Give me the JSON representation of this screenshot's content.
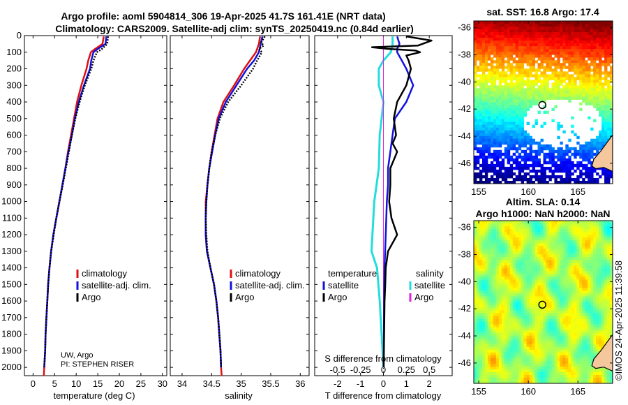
{
  "figure": {
    "title_line1": "Argo profile: aoml 5904814_306 19-Apr-2025 41.7S 161.41E (NRT data)",
    "title_line2": "Climatology: CARS2009. Satellite-adj clim: synTS_20250419.nc (0.84d earlier)",
    "credit": "UW, Argo",
    "pi": "PI: STEPHEN RISER",
    "stamp": "©IMOS 24-Apr-2025 11:39:58"
  },
  "colors": {
    "climatology": "#dd1111",
    "satellite": "#1111dd",
    "argo": "#000000",
    "salinity_sat": "#22dddd",
    "salinity_argo": "#dd22dd"
  },
  "chart_data": [
    {
      "type": "line",
      "name": "temperature-profile",
      "xlabel": "temperature (deg C)",
      "ylabel": "",
      "xlim": [
        -2,
        31
      ],
      "ylim": [
        2050,
        0
      ],
      "xticks": [
        "0",
        "5",
        "10",
        "15",
        "20",
        "25",
        "30"
      ],
      "yticks": [
        "0",
        "100",
        "200",
        "300",
        "400",
        "500",
        "600",
        "700",
        "800",
        "900",
        "1000",
        "1100",
        "1200",
        "1300",
        "1400",
        "1500",
        "1600",
        "1700",
        "1800",
        "1900",
        "2000"
      ],
      "legend": [
        "climatology",
        "satellite-adj. clim.",
        "Argo"
      ],
      "series": [
        {
          "name": "climatology",
          "depth": [
            5,
            50,
            80,
            100,
            150,
            200,
            300,
            400,
            500,
            600,
            700,
            800,
            900,
            1000,
            1100,
            1200,
            1300,
            1400,
            1500,
            1600,
            1700,
            1800,
            1900,
            2000,
            2050
          ],
          "values": [
            16.4,
            16.1,
            14.4,
            13.4,
            12.8,
            12.4,
            11.2,
            10.2,
            9.5,
            8.8,
            8.1,
            7.5,
            6.8,
            6.1,
            5.4,
            4.7,
            4.2,
            3.8,
            3.5,
            3.3,
            3.1,
            2.9,
            2.8,
            2.6,
            2.5
          ]
        },
        {
          "name": "satellite-adj. clim.",
          "depth": [
            5,
            50,
            80,
            100,
            150,
            200,
            300,
            400,
            500,
            600,
            700,
            800,
            900,
            1000,
            1100,
            1200,
            1300,
            1400,
            1500,
            1600,
            1700,
            1800,
            1900,
            2000
          ],
          "values": [
            17.0,
            16.8,
            15.0,
            14.0,
            13.5,
            13.2,
            11.8,
            10.6,
            9.7,
            9.0,
            8.2,
            7.5,
            6.8,
            6.1,
            5.4,
            4.7,
            4.2,
            3.8,
            3.5,
            3.3,
            3.1,
            2.9,
            2.8,
            2.6
          ]
        },
        {
          "name": "Argo",
          "depth": [
            5,
            50,
            80,
            100,
            150,
            200,
            300,
            400,
            500,
            600,
            700,
            800,
            900,
            1000,
            1100,
            1200,
            1300,
            1400,
            1500,
            1600,
            1700,
            1800,
            1900,
            2000
          ],
          "values": [
            17.4,
            17.2,
            16.0,
            14.8,
            14.0,
            13.5,
            12.0,
            10.8,
            9.8,
            9.0,
            8.3,
            7.6,
            6.9,
            6.1,
            5.4,
            4.8,
            4.2,
            3.8,
            3.5,
            3.3,
            3.1,
            2.9,
            2.8,
            2.6
          ]
        }
      ]
    },
    {
      "type": "line",
      "name": "salinity-profile",
      "xlabel": "salinity",
      "xlim": [
        33.8,
        36.15
      ],
      "ylim": [
        2050,
        0
      ],
      "xticks": [
        "34",
        "34.5",
        "35",
        "35.5",
        "36"
      ],
      "legend": [
        "climatology",
        "satellite-adj. clim.",
        "Argo"
      ],
      "series": [
        {
          "name": "climatology",
          "depth": [
            5,
            50,
            100,
            150,
            200,
            300,
            400,
            500,
            600,
            700,
            800,
            900,
            1000,
            1100,
            1200,
            1300,
            1400,
            1500,
            1600,
            1700,
            1800,
            1900,
            2000,
            2050
          ],
          "values": [
            35.32,
            35.3,
            35.25,
            35.15,
            35.05,
            34.88,
            34.7,
            34.6,
            34.55,
            34.5,
            34.46,
            34.43,
            34.4,
            34.4,
            34.4,
            34.42,
            34.48,
            34.54,
            34.58,
            34.61,
            34.63,
            34.65,
            34.66,
            34.67
          ]
        },
        {
          "name": "satellite-adj. clim.",
          "depth": [
            5,
            50,
            100,
            150,
            200,
            300,
            400,
            500,
            600,
            700,
            800,
            900,
            1000,
            1100,
            1200,
            1300,
            1400,
            1500,
            1600,
            1700,
            1800,
            1900,
            2000
          ],
          "values": [
            35.36,
            35.33,
            35.3,
            35.22,
            35.1,
            34.92,
            34.74,
            34.62,
            34.56,
            34.51,
            34.46,
            34.43,
            34.41,
            34.4,
            34.4,
            34.42,
            34.48,
            34.54,
            34.58,
            34.61,
            34.63,
            34.65,
            34.66
          ]
        },
        {
          "name": "Argo",
          "depth": [
            5,
            40,
            60,
            80,
            100,
            150,
            200,
            300,
            400,
            500,
            600,
            700,
            800,
            900,
            1000,
            1100,
            1200,
            1300,
            1400,
            1500,
            1600,
            1700,
            1800,
            1900,
            2000
          ],
          "values": [
            35.4,
            35.34,
            35.38,
            35.3,
            35.35,
            35.27,
            35.2,
            35.0,
            34.78,
            34.64,
            34.56,
            34.5,
            34.46,
            34.43,
            34.41,
            34.4,
            34.41,
            34.43,
            34.48,
            34.54,
            34.58,
            34.61,
            34.63,
            34.65,
            34.66
          ]
        }
      ]
    },
    {
      "type": "line",
      "name": "difference-profile",
      "xlabel": "T difference from climatology",
      "xlabel2": "S difference from climatology",
      "xlim": [
        -3.0,
        3.0
      ],
      "ylim": [
        2050,
        0
      ],
      "xticks": [
        "-2",
        "-1",
        "0",
        "1",
        "2"
      ],
      "xticks2": [
        "-0.5",
        "-0.25",
        "0",
        "0.25",
        "0.5"
      ],
      "legend_temperature_title": "temperature",
      "legend_salinity_title": "salinity",
      "legend": [
        "satellite",
        "Argo",
        "satellite",
        "Argo"
      ],
      "series": [
        {
          "name": "T satellite",
          "depth": [
            5,
            50,
            80,
            100,
            150,
            200,
            300,
            400,
            500,
            600,
            700,
            800,
            900,
            1000,
            1200,
            1400,
            1600,
            1800,
            2000
          ],
          "values": [
            0.6,
            0.7,
            0.6,
            0.6,
            0.8,
            1.0,
            1.3,
            1.0,
            0.5,
            0.4,
            0.3,
            0.2,
            0.2,
            0.15,
            0.1,
            0.05,
            0.03,
            0.02,
            0.01
          ]
        },
        {
          "name": "T Argo",
          "depth": [
            5,
            30,
            60,
            70,
            80,
            90,
            100,
            120,
            150,
            200,
            300,
            400,
            500,
            600,
            650,
            700,
            800,
            900,
            1000,
            1100,
            1200,
            1300,
            1400,
            1500,
            1600,
            1800,
            2000
          ],
          "values": [
            1.0,
            2.1,
            1.5,
            -0.5,
            0.2,
            1.4,
            1.6,
            1.0,
            1.1,
            1.2,
            1.0,
            0.6,
            0.45,
            0.55,
            0.4,
            0.6,
            0.3,
            0.3,
            0.25,
            0.35,
            0.6,
            0.2,
            0.1,
            0.08,
            0.05,
            0.03,
            0.01
          ]
        },
        {
          "name": "S satellite",
          "depth": [
            5,
            50,
            100,
            150,
            200,
            300,
            400,
            500,
            600,
            800,
            1000,
            1200,
            1300,
            1400,
            1600,
            1800,
            2000
          ],
          "values": [
            0.1,
            0.1,
            0.08,
            0.0,
            -0.05,
            -0.05,
            0.0,
            -0.02,
            -0.04,
            -0.05,
            -0.1,
            -0.12,
            -0.13,
            -0.07,
            -0.04,
            -0.02,
            0.0
          ]
        },
        {
          "name": "S Argo",
          "depth": [
            5,
            2000
          ],
          "values": [
            0.0,
            0.0
          ]
        }
      ]
    },
    {
      "type": "heatmap",
      "name": "sst-map",
      "title": "sat. SST: 16.8 Argo: 17.4",
      "xlim": [
        154.5,
        168.5
      ],
      "ylim": [
        -47.5,
        -35.5
      ],
      "xticks": [
        "155",
        "160",
        "165"
      ],
      "yticks": [
        "-36",
        "-38",
        "-40",
        "-42",
        "-44",
        "-46"
      ],
      "marker": {
        "lon": 161.41,
        "lat": -41.7
      }
    },
    {
      "type": "heatmap",
      "name": "sla-map",
      "title": "Altim. SLA: 0.14",
      "title2": "Argo h1000: NaN h2000: NaN",
      "xlim": [
        154.5,
        168.5
      ],
      "ylim": [
        -47.5,
        -35.5
      ],
      "xticks": [
        "155",
        "160",
        "165"
      ],
      "yticks": [
        "-36",
        "-38",
        "-40",
        "-42",
        "-44",
        "-46"
      ],
      "marker": {
        "lon": 161.41,
        "lat": -41.7
      }
    }
  ]
}
